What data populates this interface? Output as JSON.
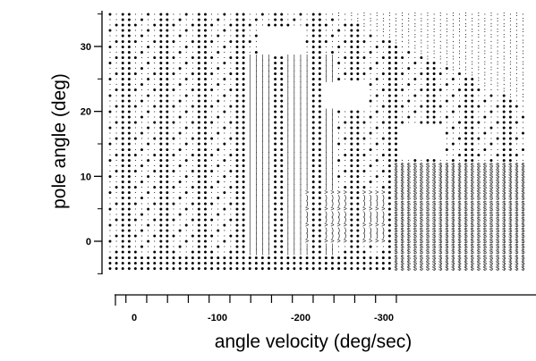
{
  "chart_data": {
    "type": "scatter",
    "xlabel": "angle velocity (deg/sec)",
    "ylabel": "pole angle (deg)",
    "x_axis": {
      "ticks": [
        {
          "value": 0,
          "label": "0"
        },
        {
          "value": -100,
          "label": "-100"
        },
        {
          "value": -200,
          "label": "-200"
        },
        {
          "value": -300,
          "label": "-300"
        }
      ],
      "reversed": true,
      "range": [
        20,
        -330
      ]
    },
    "y_axis": {
      "ticks": [
        {
          "value": 0,
          "label": "0"
        },
        {
          "value": 10,
          "label": "10"
        },
        {
          "value": 20,
          "label": "20"
        },
        {
          "value": 30,
          "label": "30"
        }
      ],
      "range": [
        -6,
        35
      ]
    },
    "grid": false,
    "legend": "none",
    "symbols": [
      "●",
      "●",
      "·",
      ":",
      "$",
      "|",
      ")",
      ">",
      "="
    ],
    "colors": {
      "ink": "#000000",
      "background": "#ffffff"
    }
  }
}
